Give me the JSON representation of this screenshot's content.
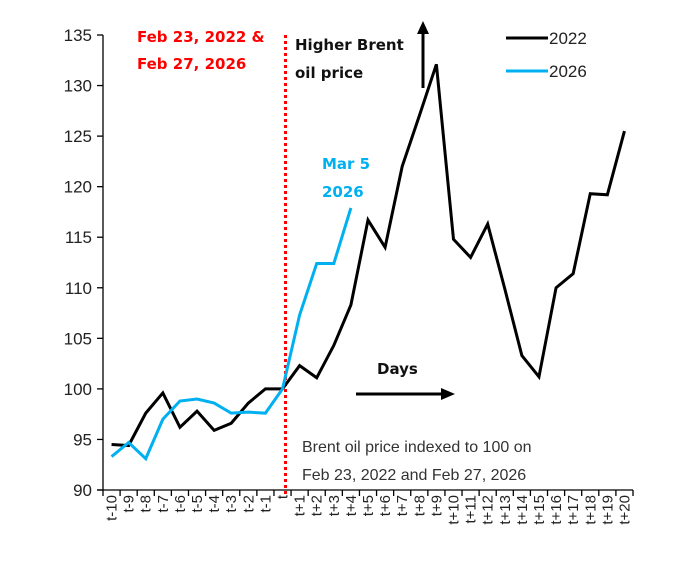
{
  "chart_data": {
    "type": "line",
    "title": "",
    "xlabel": "",
    "ylabel": "",
    "ylim": [
      90,
      135
    ],
    "yticks": [
      90,
      95,
      100,
      105,
      110,
      115,
      120,
      125,
      130,
      135
    ],
    "grid": false,
    "legend_position": "top-right",
    "categories": [
      "t-10",
      "t-9",
      "t-8",
      "t-7",
      "t-6",
      "t-5",
      "t-4",
      "t-3",
      "t-2",
      "t-1",
      "t",
      "t+1",
      "t+2",
      "t+3",
      "t+4",
      "t+5",
      "t+6",
      "t+7",
      "t+8",
      "t+9",
      "t+10",
      "t+11",
      "t+12",
      "t+13",
      "t+14",
      "t+15",
      "t+16",
      "t+17",
      "t+18",
      "t+19",
      "t+20"
    ],
    "series": [
      {
        "name": "2022",
        "color": "#000000",
        "values": [
          94.5,
          94.4,
          97.6,
          99.6,
          96.2,
          97.8,
          95.9,
          96.6,
          98.6,
          100.0,
          100.0,
          102.3,
          101.1,
          104.3,
          108.3,
          116.7,
          114.0,
          122.0,
          127.0,
          132.1,
          114.8,
          113.0,
          116.3,
          109.9,
          103.3,
          101.2,
          110.0,
          111.4,
          119.3,
          119.2,
          125.5
        ]
      },
      {
        "name": "2026",
        "color": "#00B0F0",
        "values": [
          93.3,
          94.7,
          93.1,
          97.0,
          98.8,
          99.0,
          98.6,
          97.6,
          97.7,
          97.6,
          100.0,
          107.3,
          112.4,
          112.4,
          117.9
        ]
      }
    ],
    "reference_line": {
      "category": "t",
      "color": "#FF0000",
      "style": "dotted",
      "label_lines": [
        "Feb 23, 2022 &",
        "Feb 27, 2026"
      ]
    },
    "annotations": {
      "higher_price": [
        "Higher Brent",
        "oil price"
      ],
      "mar5": [
        "Mar 5",
        "2026"
      ],
      "days": "Days",
      "note": [
        "Brent oil price indexed to 100 on",
        "Feb 23, 2022 and Feb 27, 2026"
      ]
    },
    "colors": {
      "axis": "#000000",
      "reference": "#FF0000",
      "series_2026": "#00B0F0",
      "series_2022": "#000000"
    }
  }
}
